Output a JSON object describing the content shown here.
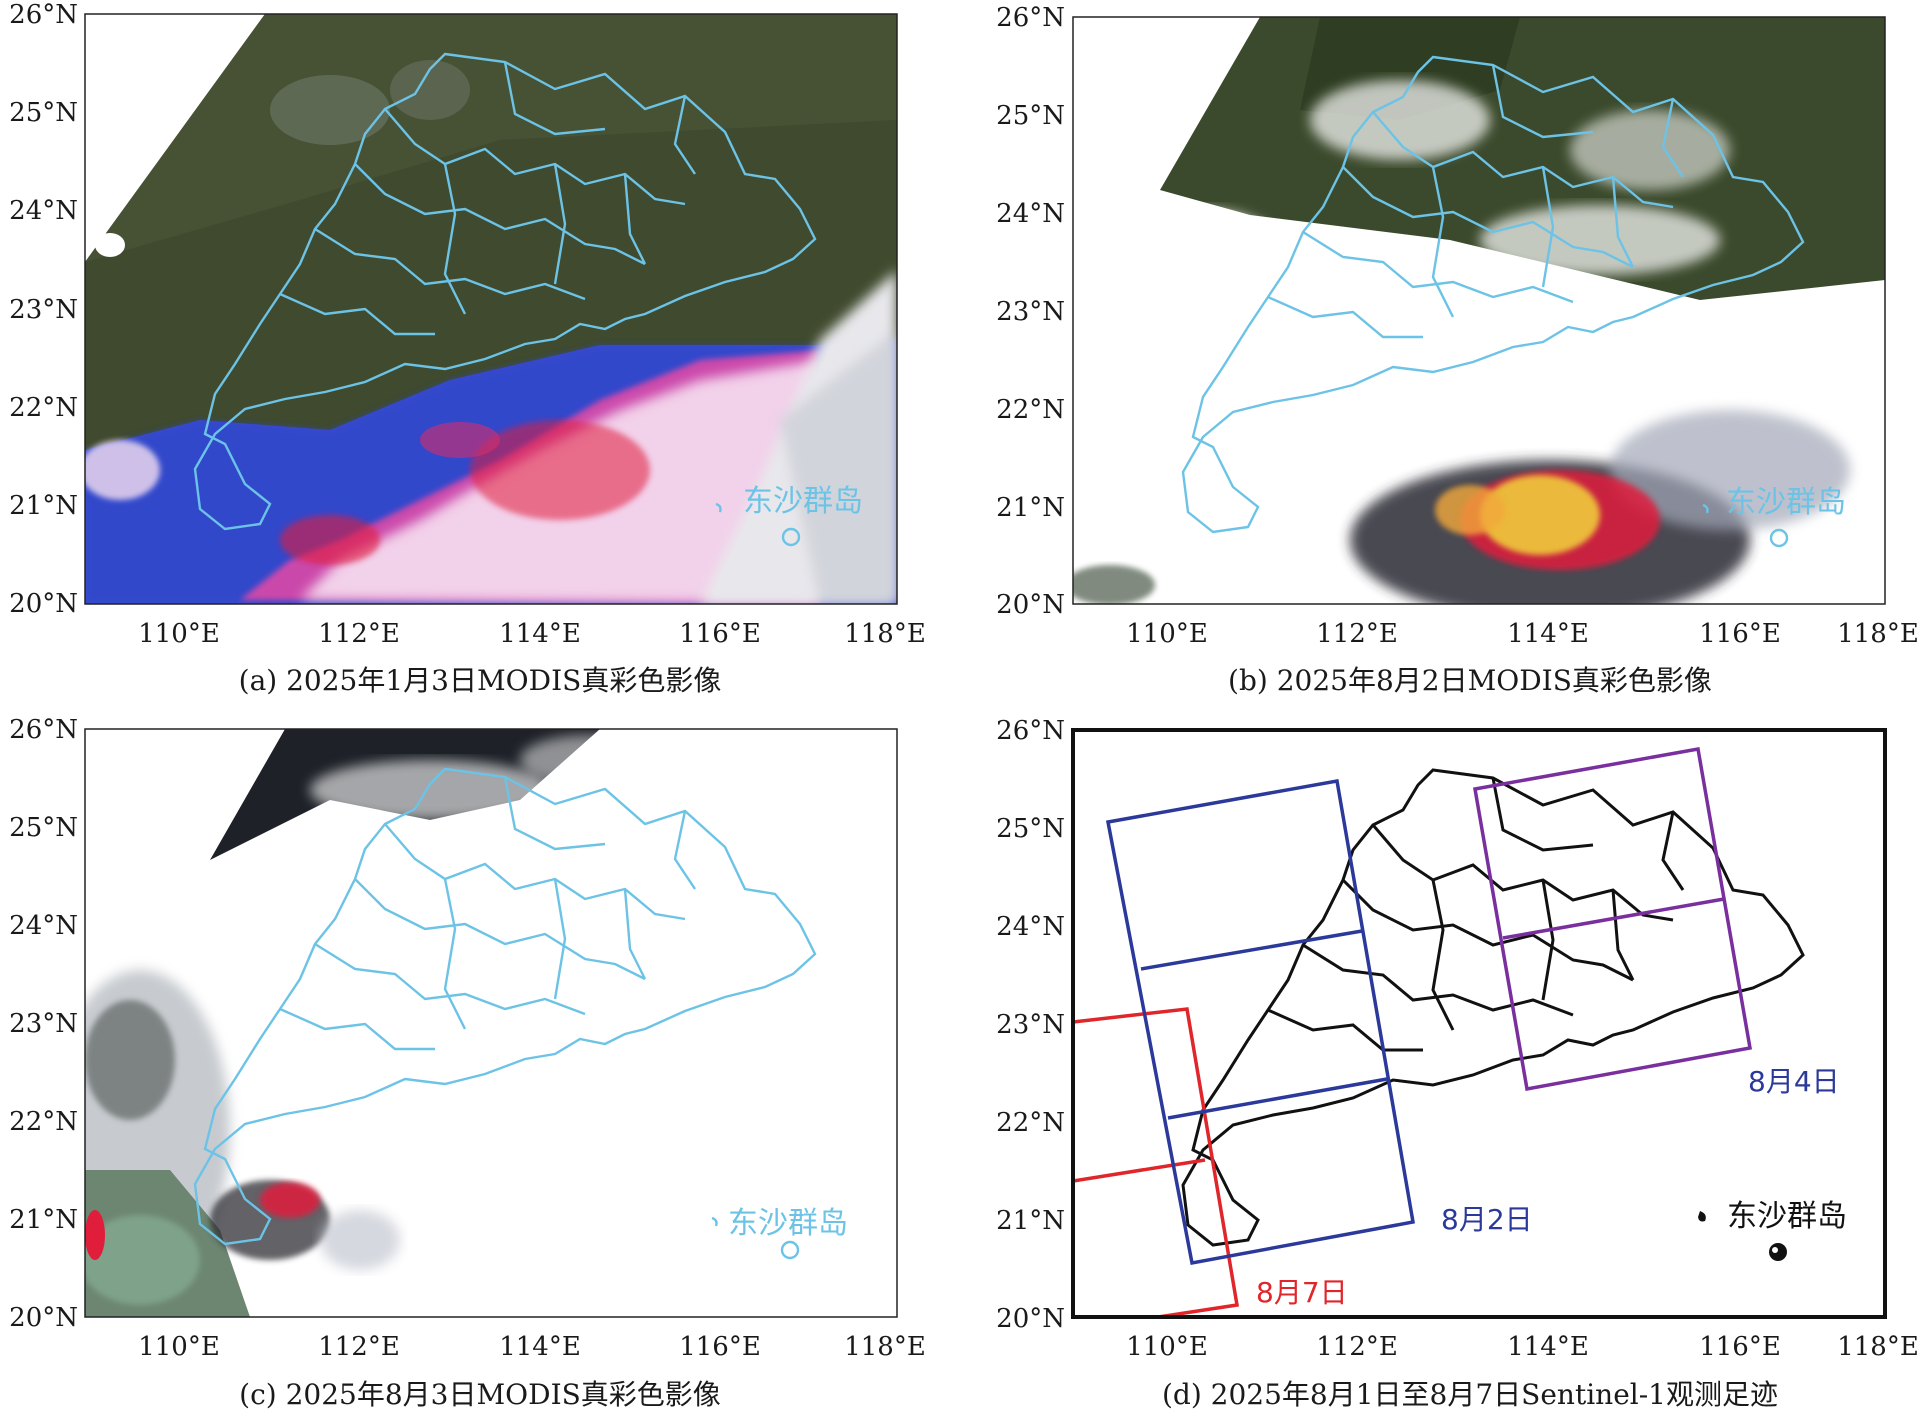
{
  "figure": {
    "panels": [
      {
        "id": "a",
        "caption": "(a) 2025年1月3日MODIS真彩色影像",
        "x_ticks": [
          "110°E",
          "112°E",
          "114°E",
          "116°E",
          "118°E"
        ],
        "y_ticks": [
          "26°N",
          "25°N",
          "24°N",
          "23°N",
          "22°N",
          "21°N",
          "20°N"
        ],
        "island_label": "东沙群岛"
      },
      {
        "id": "b",
        "caption": "(b) 2025年8月2日MODIS真彩色影像",
        "x_ticks": [
          "110°E",
          "112°E",
          "114°E",
          "116°E",
          "118°E"
        ],
        "y_ticks": [
          "26°N",
          "25°N",
          "24°N",
          "23°N",
          "22°N",
          "21°N",
          "20°N"
        ],
        "island_label": "东沙群岛"
      },
      {
        "id": "c",
        "caption": "(c) 2025年8月3日MODIS真彩色影像",
        "x_ticks": [
          "110°E",
          "112°E",
          "114°E",
          "116°E",
          "118°E"
        ],
        "y_ticks": [
          "26°N",
          "25°N",
          "24°N",
          "23°N",
          "22°N",
          "21°N",
          "20°N"
        ],
        "island_label": "东沙群岛"
      },
      {
        "id": "d",
        "caption": "(d) 2025年8月1日至8月7日Sentinel-1观测足迹",
        "x_ticks": [
          "110°E",
          "112°E",
          "114°E",
          "116°E",
          "118°E"
        ],
        "y_ticks": [
          "26°N",
          "25°N",
          "24°N",
          "23°N",
          "22°N",
          "21°N",
          "20°N"
        ],
        "island_label": "东沙群岛",
        "footprints": [
          {
            "label": "8月7日",
            "color": "#e0262b"
          },
          {
            "label": "8月2日",
            "color": "#2b3a9a"
          },
          {
            "label": "8月4日",
            "color": "#7a2f9e"
          }
        ]
      }
    ],
    "colors": {
      "boundary": "#6cc3e6",
      "land_dark": "#3f4a2e",
      "cloud": "#f4f4f6",
      "red_patch": "#e01e3c",
      "magenta_patch": "#e64aa6",
      "blue_patch": "#3a4bd0"
    }
  }
}
